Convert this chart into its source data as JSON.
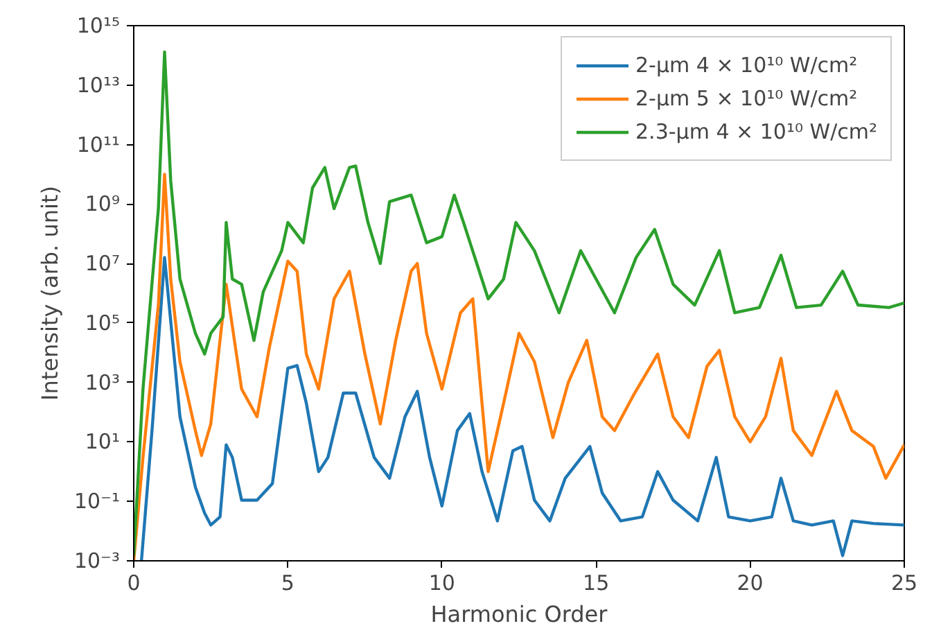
{
  "chart_data": {
    "type": "line",
    "xlabel": "Harmonic Order",
    "ylabel": "Intensity (arb. unit)",
    "log": "y",
    "grid": false,
    "legend": "top right",
    "line_style": "solid",
    "marker": "none",
    "xlim": [
      0,
      25
    ],
    "xticks": [
      0,
      5,
      10,
      15,
      20,
      25
    ],
    "ylim": [
      0.001,
      1000000000000000.0
    ],
    "yticks": [
      {
        "value": 0.001,
        "label": "10⁻³"
      },
      {
        "value": 0.1,
        "label": "10⁻¹"
      },
      {
        "value": 10,
        "label": "10¹"
      },
      {
        "value": 1000.0,
        "label": "10³"
      },
      {
        "value": 100000.0,
        "label": "10⁵"
      },
      {
        "value": 10000000.0,
        "label": "10⁷"
      },
      {
        "value": 1000000000.0,
        "label": "10⁹"
      },
      {
        "value": 100000000000.0,
        "label": "10¹¹"
      },
      {
        "value": 10000000000000.0,
        "label": "10¹³"
      },
      {
        "value": 1000000000000000.0,
        "label": "10¹⁵"
      }
    ],
    "series": [
      {
        "name": "2-µm 4 × 10¹⁰ W/cm²",
        "color": "#1f77b4",
        "x": [
          0.25,
          0.6,
          1.0,
          1.5,
          2.0,
          2.3,
          2.5,
          2.8,
          3.0,
          3.2,
          3.5,
          4.0,
          4.5,
          5.0,
          5.3,
          5.6,
          6.0,
          6.3,
          6.8,
          7.2,
          7.8,
          8.3,
          8.8,
          9.2,
          9.6,
          10.0,
          10.5,
          10.9,
          11.3,
          11.8,
          12.3,
          12.6,
          13.0,
          13.5,
          14.0,
          14.8,
          15.2,
          15.8,
          16.5,
          17.0,
          17.5,
          18.3,
          18.9,
          19.3,
          20.0,
          20.7,
          21.0,
          21.4,
          22.0,
          22.7,
          23.0,
          23.3,
          24.0,
          25.0
        ],
        "values": [
          0.001,
          30,
          16000000.0,
          70,
          0.3,
          0.04,
          0.016,
          0.03,
          8,
          3,
          0.11,
          0.11,
          0.4,
          3000,
          3700,
          200,
          1,
          3,
          440,
          440,
          3,
          0.6,
          70,
          500,
          3,
          0.07,
          24,
          90,
          1,
          0.022,
          5,
          7,
          0.11,
          0.022,
          0.6,
          7,
          0.19,
          0.022,
          0.03,
          1,
          0.11,
          0.022,
          3,
          0.03,
          0.022,
          0.03,
          0.6,
          0.022,
          0.016,
          0.022,
          0.0015,
          0.022,
          0.018,
          0.016
        ]
      },
      {
        "name": "2-µm 5 × 10¹⁰ W/cm²",
        "color": "#ff7f0e",
        "x": [
          0.0,
          0.3,
          0.8,
          1.0,
          1.2,
          1.5,
          2.0,
          2.2,
          2.5,
          3.0,
          3.3,
          3.5,
          4.0,
          4.4,
          5.0,
          5.3,
          5.6,
          6.0,
          6.5,
          7.0,
          7.5,
          8.0,
          8.5,
          9.0,
          9.2,
          9.5,
          10.0,
          10.6,
          11.0,
          11.3,
          11.5,
          12.0,
          12.5,
          13.0,
          13.6,
          14.1,
          14.7,
          15.2,
          15.6,
          16.2,
          17.0,
          17.5,
          18.0,
          18.6,
          19.0,
          19.5,
          20.0,
          20.5,
          21.0,
          21.4,
          22.0,
          22.8,
          23.3,
          24.0,
          24.4,
          25.0
        ],
        "values": [
          0.001,
          3,
          400000.0,
          10000000000.0,
          3000000.0,
          5000,
          24,
          3.5,
          40,
          2000000.0,
          15000.0,
          600,
          70,
          15000.0,
          12000000.0,
          5500000.0,
          9000,
          600,
          650000.0,
          5500000.0,
          9000,
          40,
          26000.0,
          5500000.0,
          10000000.0,
          45000.0,
          600,
          220000.0,
          650000.0,
          200,
          1,
          200,
          45000.0,
          5000,
          14,
          1000,
          26000.0,
          70,
          24,
          350,
          9000,
          70,
          14,
          3500,
          12000.0,
          70,
          10,
          70,
          6500,
          24,
          3.5,
          500,
          24,
          7,
          0.6,
          8
        ]
      },
      {
        "name": "2.3-µm 4 × 10¹⁰ W/cm²",
        "color": "#2ca02c",
        "x": [
          0.0,
          0.3,
          0.8,
          1.0,
          1.2,
          1.5,
          2.0,
          2.3,
          2.5,
          2.9,
          3.0,
          3.2,
          3.5,
          3.9,
          4.2,
          4.8,
          5.0,
          5.5,
          5.8,
          6.2,
          6.5,
          7.0,
          7.2,
          7.6,
          8.0,
          8.3,
          9.0,
          9.5,
          10.0,
          10.4,
          10.7,
          11.5,
          12.0,
          12.4,
          13.0,
          13.8,
          14.5,
          15.0,
          15.6,
          16.3,
          16.9,
          17.5,
          18.2,
          19.0,
          19.5,
          20.3,
          21.0,
          21.5,
          22.3,
          23.0,
          23.5,
          24.5,
          25.0
        ],
        "values": [
          0.0015,
          600,
          700000000.0,
          130000000000000.0,
          6000000000.0,
          3000000.0,
          45000.0,
          9000,
          45000.0,
          160000.0,
          240000000.0,
          3000000.0,
          2000000.0,
          26000.0,
          1100000.0,
          27000000.0,
          240000000.0,
          50000000.0,
          3500000000.0,
          17000000000.0,
          700000000.0,
          17000000000.0,
          19000000000.0,
          240000000.0,
          10000000.0,
          1200000000.0,
          2000000000.0,
          50000000.0,
          80000000.0,
          2000000000.0,
          240000000.0,
          650000.0,
          3000000.0,
          240000000.0,
          27000000.0,
          220000.0,
          27000000.0,
          3000000.0,
          220000.0,
          16000000.0,
          140000000.0,
          2000000.0,
          400000.0,
          27000000.0,
          220000.0,
          330000.0,
          19000000.0,
          330000.0,
          400000.0,
          5500000.0,
          400000.0,
          330000.0,
          470000.0
        ]
      }
    ]
  }
}
